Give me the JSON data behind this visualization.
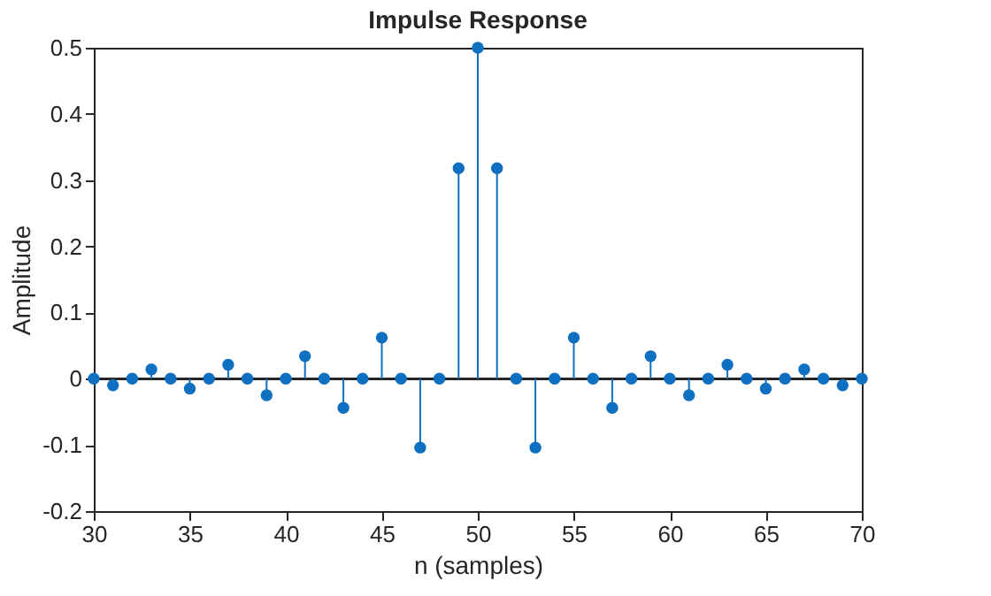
{
  "chart_data": {
    "type": "lollipop",
    "title": "Impulse Response",
    "xlabel": "n (samples)",
    "ylabel": "Amplitude",
    "x": [
      30,
      31,
      32,
      33,
      34,
      35,
      36,
      37,
      38,
      39,
      40,
      41,
      42,
      43,
      44,
      45,
      46,
      47,
      48,
      49,
      50,
      51,
      52,
      53,
      54,
      55,
      56,
      57,
      58,
      59,
      60,
      61,
      62,
      63,
      64,
      65,
      66,
      67,
      68,
      69,
      70
    ],
    "values": [
      0,
      -0.01,
      0,
      0.014,
      0,
      -0.015,
      0,
      0.021,
      0,
      -0.025,
      0,
      0.034,
      0,
      -0.044,
      0,
      0.062,
      0,
      -0.104,
      0,
      0.318,
      0.5,
      0.318,
      0,
      -0.104,
      0,
      0.062,
      0,
      -0.044,
      0,
      0.034,
      0,
      -0.025,
      0,
      0.021,
      0,
      -0.015,
      0,
      0.014,
      0,
      -0.01,
      0
    ],
    "color": "#0f6fc0",
    "marker": "circle",
    "grid": false,
    "xlim": [
      30,
      70
    ],
    "xticks": [
      30,
      35,
      40,
      45,
      50,
      55,
      60,
      65,
      70
    ],
    "ylim": [
      -0.2,
      0.5
    ],
    "yticks": [
      -0.2,
      -0.1,
      0,
      0.1,
      0.2,
      0.3,
      0.4,
      0.5
    ]
  }
}
